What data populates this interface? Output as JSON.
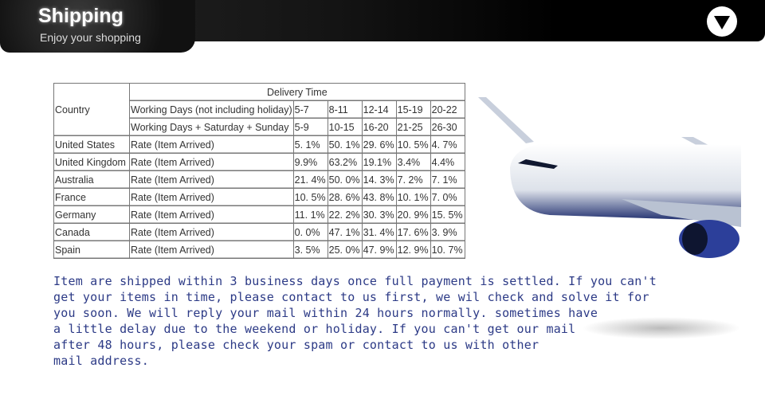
{
  "header": {
    "title": "Shipping",
    "subtitle": "Enjoy your shopping",
    "menu_icon": "triangle-down-icon"
  },
  "table": {
    "country_header": "Country",
    "delivery_header": "Delivery Time",
    "row_working": {
      "label": "Working Days (not including holiday)",
      "values": [
        "5-7",
        "8-11",
        "12-14",
        "15-19",
        "20-22"
      ]
    },
    "row_weekend": {
      "label": "Working Days + Saturday + Sunday",
      "values": [
        "5-9",
        "10-15",
        "16-20",
        "21-25",
        "26-30"
      ]
    },
    "rate_label": "Rate (Item Arrived)",
    "rows": [
      {
        "country": "United States",
        "values": [
          "5. 1%",
          "50. 1%",
          "29. 6%",
          "10. 5%",
          "4. 7%"
        ]
      },
      {
        "country": "United Kingdom",
        "values": [
          "9.9%",
          "63.2%",
          "19.1%",
          "3.4%",
          "4.4%"
        ]
      },
      {
        "country": "Australia",
        "values": [
          "21. 4%",
          "50. 0%",
          "14. 3%",
          "7. 2%",
          "7. 1%"
        ]
      },
      {
        "country": "France",
        "values": [
          "10. 5%",
          "28. 6%",
          "43. 8%",
          "10. 1%",
          "7. 0%"
        ]
      },
      {
        "country": "Germany",
        "values": [
          "11. 1%",
          "22. 2%",
          "30. 3%",
          "20. 9%",
          "15. 5%"
        ]
      },
      {
        "country": "Canada",
        "values": [
          "0. 0%",
          "47. 1%",
          "31. 4%",
          "17. 6%",
          "3. 9%"
        ]
      },
      {
        "country": "Spain",
        "values": [
          "3. 5%",
          "25. 0%",
          "47. 9%",
          "12. 9%",
          "10. 7%"
        ]
      }
    ]
  },
  "note": {
    "lines": [
      "Item are shipped within 3 business days once full payment is settled. If you can't",
      "get your items in time, please contact to us first, we wil check and solve it for",
      "you soon. We will reply your mail within 24 hours normally. sometimes have",
      "a little delay due to the weekend or holiday. If you can't get our mail",
      "after 48 hours, please check your spam or contact to us with other",
      "mail address."
    ]
  }
}
